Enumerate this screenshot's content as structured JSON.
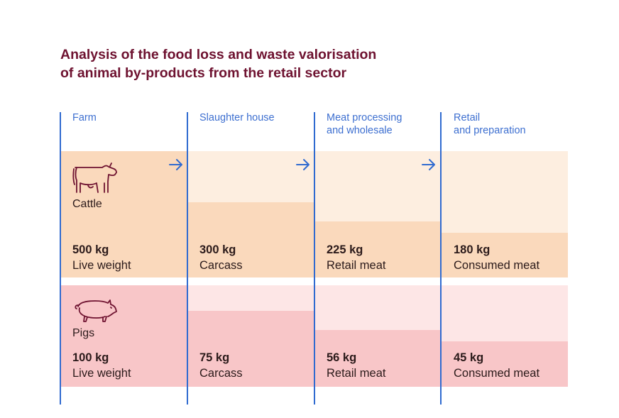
{
  "title": {
    "line1": "Analysis of the food loss and waste valorisation",
    "line2": "of animal by-products from the retail sector"
  },
  "stages": [
    {
      "line1": "Farm",
      "line2": ""
    },
    {
      "line1": "Slaughter house",
      "line2": ""
    },
    {
      "line1": "Meat processing",
      "line2": "and wholesale"
    },
    {
      "line1": "Retail",
      "line2": "and preparation"
    }
  ],
  "animals": [
    {
      "name": "Cattle",
      "icon": "cow-icon",
      "values": [
        {
          "amount": "500 kg",
          "label": "Live weight",
          "fraction": 1.0
        },
        {
          "amount": "300 kg",
          "label": "Carcass",
          "fraction": 0.6
        },
        {
          "amount": "225 kg",
          "label": "Retail meat",
          "fraction": 0.45
        },
        {
          "amount": "180 kg",
          "label": "Consumed meat",
          "fraction": 0.36
        }
      ]
    },
    {
      "name": "Pigs",
      "icon": "pig-icon",
      "values": [
        {
          "amount": "100 kg",
          "label": "Live weight",
          "fraction": 1.0
        },
        {
          "amount": "75 kg",
          "label": "Carcass",
          "fraction": 0.75
        },
        {
          "amount": "56 kg",
          "label": "Retail meat",
          "fraction": 0.56
        },
        {
          "amount": "45 kg",
          "label": "Consumed meat",
          "fraction": 0.45
        }
      ]
    }
  ],
  "colors": {
    "title": "#6e1230",
    "accent_blue": "#2f6ad0",
    "cattle_light": "#fdeee0",
    "cattle_dark": "#fad9bc",
    "pigs_light": "#fde6e6",
    "pigs_dark": "#f8c6c8"
  },
  "icons": {
    "flow_arrow": "arrow-right-icon"
  }
}
